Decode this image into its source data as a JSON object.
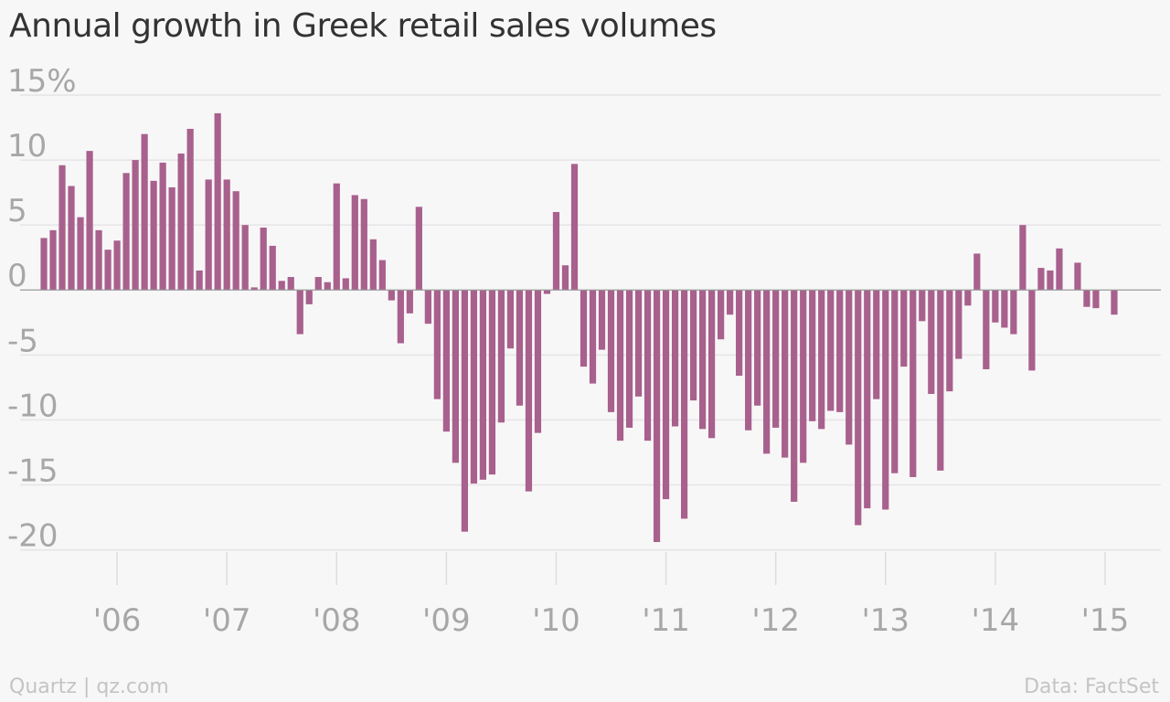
{
  "chart_data": {
    "type": "bar",
    "title": "Annual growth in Greek retail sales volumes",
    "xlabel": "",
    "ylabel": "",
    "ylim": [
      -22,
      15
    ],
    "y_ticks": [
      15,
      10,
      5,
      0,
      -5,
      -10,
      -15,
      -20
    ],
    "y_tick_labels": [
      "15%",
      "10",
      "5",
      "0",
      "-5",
      "-10",
      "-15",
      "-20"
    ],
    "x_range": [
      "2005-04",
      "2015-06"
    ],
    "x_ticks": [
      "'06",
      "'07",
      "'08",
      "'09",
      "'10",
      "'11",
      "'12",
      "'13",
      "'14",
      "'15"
    ],
    "x_tick_dates": [
      "2006-01",
      "2007-01",
      "2008-01",
      "2009-01",
      "2010-01",
      "2011-01",
      "2012-01",
      "2013-01",
      "2014-01",
      "2015-01"
    ],
    "start_month": "2005-05",
    "bar_color": "#a8608d",
    "grid": true,
    "legend": "none",
    "values": [
      4.0,
      4.6,
      9.6,
      8.0,
      5.6,
      10.7,
      4.6,
      3.1,
      3.8,
      9.0,
      10.0,
      12.0,
      8.4,
      9.8,
      7.9,
      10.5,
      12.4,
      1.5,
      8.5,
      13.6,
      8.5,
      7.6,
      5.0,
      0.2,
      4.8,
      3.4,
      0.7,
      1.0,
      -3.4,
      -1.1,
      1.0,
      0.6,
      8.2,
      0.9,
      7.3,
      7.0,
      3.9,
      2.3,
      -0.8,
      -4.1,
      -1.8,
      6.4,
      -2.6,
      -8.4,
      -10.9,
      -13.3,
      -18.6,
      -14.9,
      -14.6,
      -14.2,
      -10.2,
      -4.5,
      -8.9,
      -15.5,
      -11.0,
      -0.3,
      6.0,
      1.9,
      9.7,
      -5.9,
      -7.2,
      -4.6,
      -9.4,
      -11.6,
      -10.6,
      -8.2,
      -11.6,
      -19.4,
      -16.1,
      -10.5,
      -17.6,
      -8.5,
      -10.7,
      -11.4,
      -3.8,
      -1.9,
      -6.6,
      -10.8,
      -8.9,
      -12.6,
      -10.6,
      -12.9,
      -16.3,
      -13.3,
      -10.1,
      -10.7,
      -9.3,
      -9.4,
      -11.9,
      -18.1,
      -16.8,
      -8.4,
      -16.9,
      -14.1,
      -5.9,
      -14.4,
      -2.4,
      -8.0,
      -13.9,
      -7.8,
      -5.3,
      -1.2,
      2.8,
      -6.1,
      -2.5,
      -2.9,
      -3.4,
      5.0,
      -6.2,
      1.7,
      1.5,
      3.2,
      0.0,
      2.1,
      -1.3,
      -1.4,
      0.0,
      -1.9
    ]
  },
  "footer": {
    "source_left": "Quartz | qz.com",
    "source_right": "Data: FactSet"
  }
}
